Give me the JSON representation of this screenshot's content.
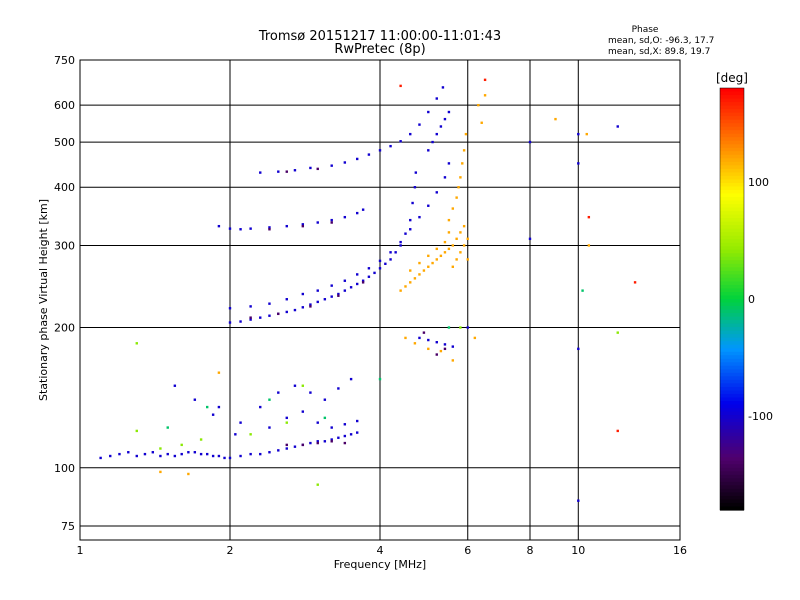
{
  "chart_data": {
    "type": "scatter",
    "title": "Tromsø 20151217 11:00:00-11:01:43",
    "subtitle": "RwPretec (8p)",
    "xlabel": "Frequency [MHz]",
    "ylabel": "Stationary phase Virtual Height [km]",
    "x_scale": "log",
    "y_scale": "log",
    "xlim": [
      1,
      16
    ],
    "ylim": [
      70,
      750
    ],
    "x_ticks": [
      1,
      2,
      4,
      6,
      8,
      10,
      16
    ],
    "y_ticks": [
      75,
      100,
      200,
      300,
      400,
      500,
      600,
      750
    ],
    "grid": true,
    "stats": {
      "heading": "Phase",
      "line_o": "mean, sd,O: -96.3, 17.7",
      "line_x": "mean, sd,X:  89.8, 19.7"
    },
    "colorbar": {
      "label": "[deg]",
      "ticks": [
        100,
        0,
        -100
      ],
      "range": [
        -180,
        180
      ],
      "colormap": "rainbow"
    },
    "point_groups": [
      {
        "phase": -100,
        "points": [
          [
            1.1,
            105
          ],
          [
            1.15,
            106
          ],
          [
            1.2,
            107
          ],
          [
            1.25,
            108
          ],
          [
            1.3,
            106
          ],
          [
            1.35,
            107
          ],
          [
            1.4,
            108
          ],
          [
            1.45,
            106
          ],
          [
            1.5,
            107
          ],
          [
            1.55,
            106
          ],
          [
            1.6,
            107
          ],
          [
            1.65,
            108
          ],
          [
            1.7,
            108
          ],
          [
            1.75,
            107
          ],
          [
            1.8,
            107
          ],
          [
            1.85,
            106
          ],
          [
            1.9,
            106
          ],
          [
            1.95,
            105
          ],
          [
            2.0,
            105
          ],
          [
            2.1,
            106
          ],
          [
            2.2,
            107
          ],
          [
            2.3,
            107
          ],
          [
            2.4,
            108
          ],
          [
            2.5,
            109
          ],
          [
            2.6,
            110
          ],
          [
            2.7,
            111
          ],
          [
            2.8,
            112
          ],
          [
            2.9,
            113
          ],
          [
            3.0,
            114
          ],
          [
            3.1,
            114
          ],
          [
            3.2,
            115
          ],
          [
            3.3,
            116
          ],
          [
            3.4,
            117
          ],
          [
            3.5,
            118
          ],
          [
            3.6,
            119
          ],
          [
            2.0,
            205
          ],
          [
            2.1,
            206
          ],
          [
            2.2,
            208
          ],
          [
            2.3,
            210
          ],
          [
            2.4,
            212
          ],
          [
            2.5,
            214
          ],
          [
            2.6,
            216
          ],
          [
            2.7,
            218
          ],
          [
            2.8,
            221
          ],
          [
            2.9,
            224
          ],
          [
            3.0,
            227
          ],
          [
            3.1,
            230
          ],
          [
            3.2,
            233
          ],
          [
            3.3,
            236
          ],
          [
            3.4,
            240
          ],
          [
            3.5,
            244
          ],
          [
            3.6,
            248
          ],
          [
            3.7,
            252
          ],
          [
            3.8,
            257
          ],
          [
            3.9,
            262
          ],
          [
            4.0,
            268
          ],
          [
            4.1,
            274
          ],
          [
            4.2,
            280
          ],
          [
            4.3,
            290
          ],
          [
            4.4,
            300
          ],
          [
            4.5,
            318
          ],
          [
            4.6,
            340
          ],
          [
            4.65,
            370
          ],
          [
            4.7,
            400
          ],
          [
            4.72,
            430
          ],
          [
            2.0,
            220
          ],
          [
            2.2,
            222
          ],
          [
            2.4,
            225
          ],
          [
            2.6,
            230
          ],
          [
            2.8,
            236
          ],
          [
            3.0,
            240
          ],
          [
            3.2,
            246
          ],
          [
            3.4,
            252
          ],
          [
            3.6,
            260
          ],
          [
            3.8,
            268
          ],
          [
            4.0,
            278
          ],
          [
            4.2,
            290
          ],
          [
            4.4,
            305
          ],
          [
            4.6,
            325
          ],
          [
            4.8,
            345
          ],
          [
            5.0,
            365
          ],
          [
            5.2,
            390
          ],
          [
            5.4,
            420
          ],
          [
            5.5,
            450
          ],
          [
            1.9,
            330
          ],
          [
            2.0,
            326
          ],
          [
            2.1,
            325
          ],
          [
            2.2,
            326
          ],
          [
            2.4,
            328
          ],
          [
            2.6,
            330
          ],
          [
            2.8,
            333
          ],
          [
            3.0,
            336
          ],
          [
            3.2,
            340
          ],
          [
            3.4,
            345
          ],
          [
            3.6,
            352
          ],
          [
            3.7,
            358
          ],
          [
            2.3,
            430
          ],
          [
            2.5,
            432
          ],
          [
            2.7,
            435
          ],
          [
            2.9,
            440
          ],
          [
            3.2,
            445
          ],
          [
            3.4,
            452
          ],
          [
            3.6,
            460
          ],
          [
            3.8,
            470
          ],
          [
            4.0,
            480
          ],
          [
            4.2,
            490
          ],
          [
            4.4,
            502
          ],
          [
            4.6,
            520
          ],
          [
            4.8,
            545
          ],
          [
            5.0,
            580
          ],
          [
            5.2,
            620
          ],
          [
            5.35,
            655
          ],
          [
            5.0,
            480
          ],
          [
            5.1,
            500
          ],
          [
            5.2,
            520
          ],
          [
            5.3,
            540
          ],
          [
            5.4,
            560
          ],
          [
            5.5,
            580
          ],
          [
            1.55,
            150
          ],
          [
            1.7,
            140
          ],
          [
            1.85,
            130
          ],
          [
            2.1,
            125
          ],
          [
            2.3,
            135
          ],
          [
            2.5,
            145
          ],
          [
            2.7,
            150
          ],
          [
            2.9,
            145
          ],
          [
            3.1,
            140
          ],
          [
            3.3,
            148
          ],
          [
            3.5,
            155
          ],
          [
            1.9,
            135
          ],
          [
            2.05,
            118
          ],
          [
            2.4,
            122
          ],
          [
            2.6,
            128
          ],
          [
            2.8,
            132
          ],
          [
            3.0,
            125
          ],
          [
            3.2,
            122
          ],
          [
            3.4,
            124
          ],
          [
            3.6,
            126
          ],
          [
            4.8,
            190
          ],
          [
            5.0,
            188
          ],
          [
            5.2,
            186
          ],
          [
            5.4,
            184
          ],
          [
            5.6,
            182
          ],
          [
            10.0,
            520
          ],
          [
            10.0,
            450
          ],
          [
            10.0,
            180
          ],
          [
            10.0,
            85
          ],
          [
            8.0,
            500
          ],
          [
            8.0,
            310
          ],
          [
            12.0,
            540
          ],
          [
            6.0,
            200
          ]
        ]
      },
      {
        "phase": -140,
        "points": [
          [
            2.6,
            112
          ],
          [
            2.8,
            112
          ],
          [
            3.0,
            113
          ],
          [
            3.2,
            114
          ],
          [
            3.4,
            113
          ],
          [
            2.2,
            210
          ],
          [
            2.5,
            214
          ],
          [
            2.9,
            222
          ],
          [
            3.3,
            234
          ],
          [
            3.7,
            250
          ],
          [
            2.4,
            325
          ],
          [
            2.8,
            330
          ],
          [
            3.2,
            336
          ],
          [
            2.6,
            432
          ],
          [
            3.0,
            438
          ],
          [
            5.2,
            175
          ],
          [
            5.4,
            180
          ],
          [
            4.9,
            195
          ]
        ]
      },
      {
        "phase": 120,
        "points": [
          [
            4.4,
            240
          ],
          [
            4.5,
            245
          ],
          [
            4.6,
            250
          ],
          [
            4.7,
            255
          ],
          [
            4.8,
            260
          ],
          [
            4.9,
            265
          ],
          [
            5.0,
            270
          ],
          [
            5.1,
            275
          ],
          [
            5.2,
            280
          ],
          [
            5.3,
            285
          ],
          [
            5.4,
            290
          ],
          [
            5.5,
            295
          ],
          [
            5.6,
            300
          ],
          [
            5.7,
            310
          ],
          [
            5.8,
            320
          ],
          [
            5.9,
            330
          ],
          [
            5.5,
            340
          ],
          [
            5.6,
            360
          ],
          [
            5.7,
            380
          ],
          [
            5.75,
            400
          ],
          [
            5.8,
            420
          ],
          [
            5.85,
            450
          ],
          [
            5.9,
            480
          ],
          [
            5.95,
            520
          ],
          [
            4.6,
            265
          ],
          [
            4.8,
            275
          ],
          [
            5.0,
            285
          ],
          [
            5.2,
            295
          ],
          [
            5.4,
            305
          ],
          [
            5.5,
            320
          ],
          [
            5.6,
            270
          ],
          [
            5.7,
            280
          ],
          [
            5.8,
            290
          ],
          [
            5.9,
            300
          ],
          [
            6.0,
            310
          ],
          [
            6.0,
            280
          ],
          [
            4.5,
            190
          ],
          [
            4.7,
            185
          ],
          [
            5.0,
            180
          ],
          [
            5.3,
            178
          ],
          [
            5.6,
            170
          ],
          [
            6.2,
            190
          ],
          [
            6.3,
            600
          ],
          [
            6.5,
            630
          ],
          [
            6.4,
            550
          ],
          [
            9.0,
            560
          ],
          [
            10.4,
            520
          ],
          [
            10.5,
            300
          ],
          [
            1.45,
            98
          ],
          [
            1.65,
            97
          ],
          [
            1.9,
            160
          ]
        ]
      },
      {
        "phase": 40,
        "points": [
          [
            1.3,
            120
          ],
          [
            1.45,
            110
          ],
          [
            1.6,
            112
          ],
          [
            1.75,
            115
          ],
          [
            2.2,
            118
          ],
          [
            2.6,
            125
          ],
          [
            3.0,
            92
          ],
          [
            2.8,
            150
          ],
          [
            1.3,
            185
          ],
          [
            5.8,
            200
          ],
          [
            12.0,
            195
          ]
        ]
      },
      {
        "phase": -10,
        "points": [
          [
            1.5,
            122
          ],
          [
            1.8,
            135
          ],
          [
            2.4,
            140
          ],
          [
            3.1,
            128
          ],
          [
            4.0,
            155
          ],
          [
            5.5,
            200
          ],
          [
            10.2,
            240
          ]
        ]
      },
      {
        "phase": 170,
        "points": [
          [
            6.5,
            680
          ],
          [
            10.5,
            345
          ],
          [
            4.4,
            660
          ],
          [
            12.0,
            120
          ],
          [
            13.0,
            250
          ]
        ]
      }
    ]
  }
}
